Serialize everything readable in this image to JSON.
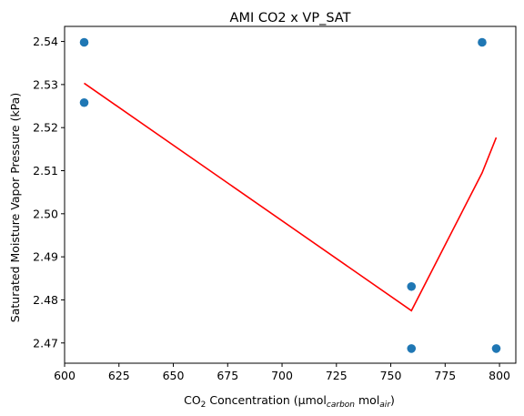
{
  "chart_data": {
    "type": "scatter",
    "title": "AMI CO2 x VP_SAT",
    "xlabel": {
      "parts": [
        {
          "text": "CO",
          "style": "normal"
        },
        {
          "text": "2",
          "style": "sub"
        },
        {
          "text": " Concentration (μmol",
          "style": "normal"
        },
        {
          "text": "carbon",
          "style": "sub-italic"
        },
        {
          "text": " mol",
          "style": "normal"
        },
        {
          "text": "air",
          "style": "sub-italic"
        },
        {
          "text": ")",
          "style": "normal"
        }
      ]
    },
    "ylabel": "Saturated Moisture Vapor Pressure (kPa)",
    "xlim": [
      600,
      807.5
    ],
    "ylim": [
      2.4653,
      2.5435
    ],
    "xticks": [
      600,
      625,
      650,
      675,
      700,
      725,
      750,
      775,
      800
    ],
    "xtick_labels": [
      "600",
      "625",
      "650",
      "675",
      "700",
      "725",
      "750",
      "775",
      "800"
    ],
    "yticks": [
      2.47,
      2.48,
      2.49,
      2.5,
      2.51,
      2.52,
      2.53,
      2.54
    ],
    "ytick_labels": [
      "2.47",
      "2.48",
      "2.49",
      "2.50",
      "2.51",
      "2.52",
      "2.53",
      "2.54"
    ],
    "grid": false,
    "series": [
      {
        "type": "scatter",
        "color": "#1f77b4",
        "points": [
          {
            "x": 609,
            "y": 2.5398
          },
          {
            "x": 609,
            "y": 2.5258
          },
          {
            "x": 759.5,
            "y": 2.4831
          },
          {
            "x": 759.5,
            "y": 2.4687
          },
          {
            "x": 792,
            "y": 2.5398
          },
          {
            "x": 798.5,
            "y": 2.4687
          }
        ]
      },
      {
        "type": "line",
        "color": "#ff0000",
        "points": [
          {
            "x": 609,
            "y": 2.5303
          },
          {
            "x": 759.5,
            "y": 2.4775
          },
          {
            "x": 792,
            "y": 2.5095
          },
          {
            "x": 798.5,
            "y": 2.5177
          }
        ]
      }
    ]
  }
}
